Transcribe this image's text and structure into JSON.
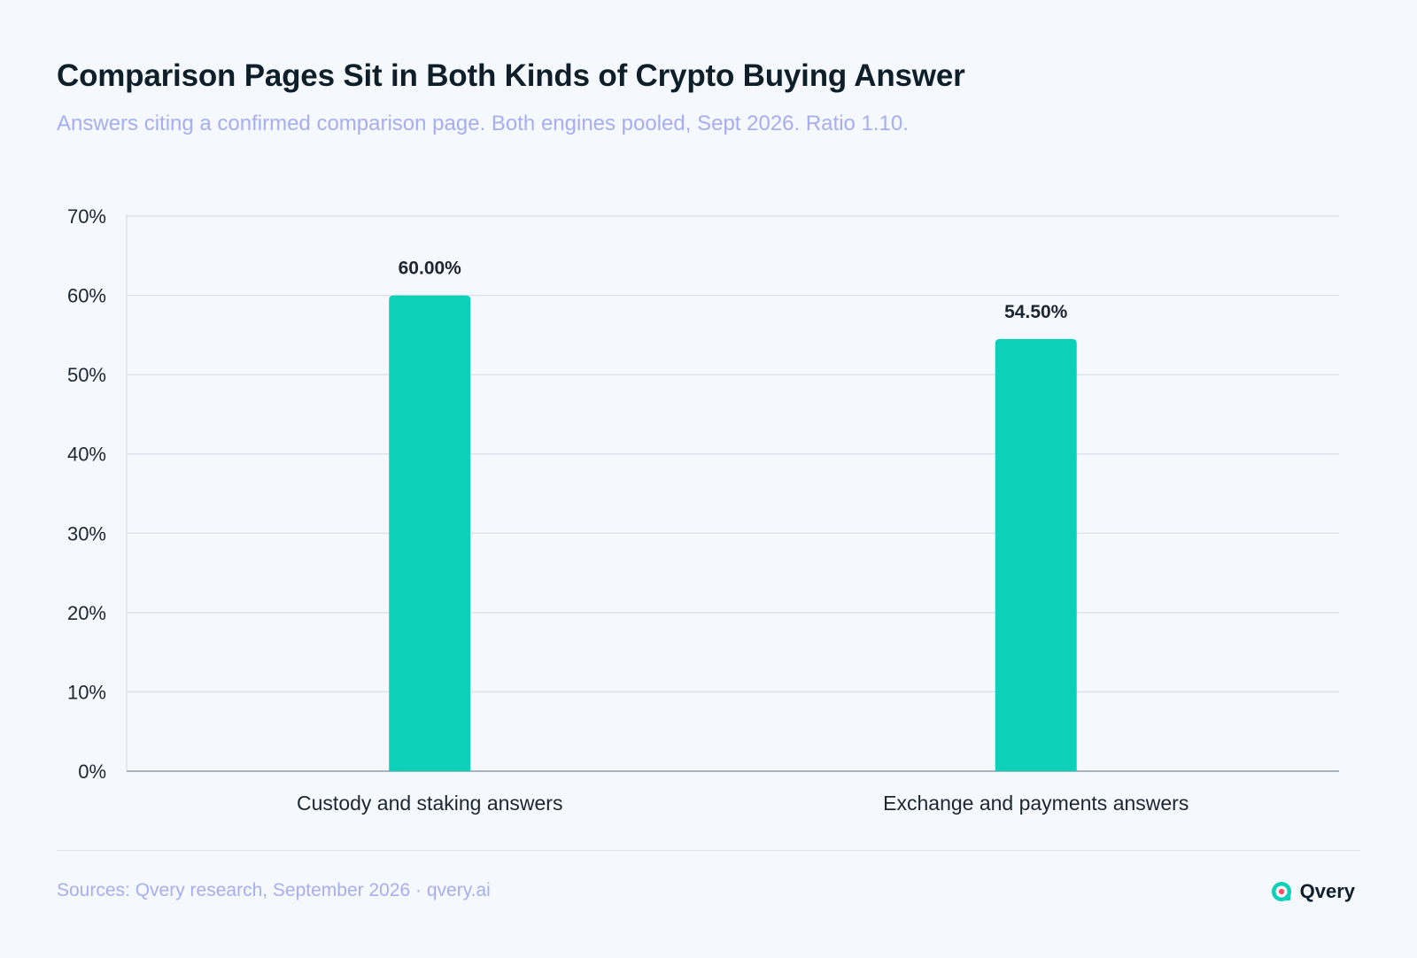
{
  "header": {
    "title": "Comparison Pages Sit in Both Kinds of Crypto Buying Answer",
    "subtitle": "Answers citing a confirmed comparison page. Both engines pooled, Sept 2026. Ratio 1.10."
  },
  "chart_data": {
    "type": "bar",
    "categories": [
      "Custody and staking answers",
      "Exchange and payments answers"
    ],
    "values": [
      60.0,
      54.5
    ],
    "value_labels": [
      "60.00%",
      "54.50%"
    ],
    "yticks": [
      "0%",
      "10%",
      "20%",
      "30%",
      "40%",
      "50%",
      "60%",
      "70%"
    ],
    "ylim": [
      0,
      70
    ],
    "grid": true,
    "bar_color": "#0dd0b9"
  },
  "footer": {
    "source": "Sources: Qvery research, September 2026 · qvery.ai",
    "brand": "Qvery",
    "brand_icon": "qvery-logo-icon"
  },
  "colors": {
    "title": "#0e1f2a",
    "subtitle": "#a7aef0",
    "grid": "#dde3ec",
    "bar": "#0dd0b9"
  }
}
